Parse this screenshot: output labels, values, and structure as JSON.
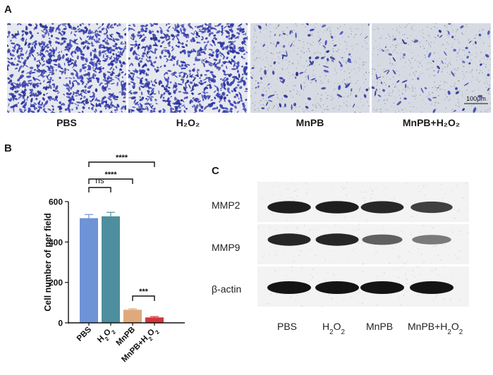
{
  "panels": {
    "a": "A",
    "b": "B",
    "c": "C"
  },
  "micrographs": {
    "labels": [
      "PBS",
      "H₂O₂",
      "MnPB",
      "MnPB+H₂O₂"
    ],
    "scale_bar": "100μm",
    "cell_color": "#3b44b8",
    "bg_dense": "#e6e8ef",
    "bg_sparse": "#d6dbe3"
  },
  "chart_data": {
    "type": "bar",
    "categories": [
      "PBS",
      "H2O2",
      "MnPB",
      "MnPB+H2O2"
    ],
    "category_labels": [
      {
        "main": "PBS",
        "sub": ""
      },
      {
        "main": "H",
        "sub": "2",
        "after": "O",
        "sub2": "2"
      },
      {
        "main": "MnPB",
        "sub": ""
      },
      {
        "main": "MnPB+H",
        "sub": "2",
        "after": "O",
        "sub2": "2"
      }
    ],
    "values": [
      518,
      527,
      65,
      27
    ],
    "errors": [
      18,
      20,
      4,
      4
    ],
    "colors": [
      "#6e93d6",
      "#4d8f9e",
      "#dfa97b",
      "#d4343a"
    ],
    "ylabel": "Cell number of per field",
    "ylim": [
      0,
      600
    ],
    "yticks": [
      0,
      200,
      400,
      600
    ],
    "significance": [
      {
        "from": 0,
        "to": 1,
        "label": "ns"
      },
      {
        "from": 0,
        "to": 2,
        "label": "****"
      },
      {
        "from": 0,
        "to": 3,
        "label": "****"
      },
      {
        "from": 2,
        "to": 3,
        "label": "***"
      }
    ]
  },
  "blot": {
    "rows": [
      "MMP2",
      "MMP9",
      "β-actin"
    ],
    "lanes": [
      {
        "main": "PBS"
      },
      {
        "main": "H",
        "sub": "2",
        "after": "O",
        "sub2": "2"
      },
      {
        "main": "MnPB"
      },
      {
        "main": "MnPB+H",
        "sub": "2",
        "after": "O",
        "sub2": "2"
      }
    ],
    "intensity": [
      [
        0.95,
        0.95,
        0.9,
        0.78
      ],
      [
        0.92,
        0.92,
        0.6,
        0.45
      ],
      [
        1.0,
        1.0,
        1.0,
        1.0
      ]
    ]
  }
}
